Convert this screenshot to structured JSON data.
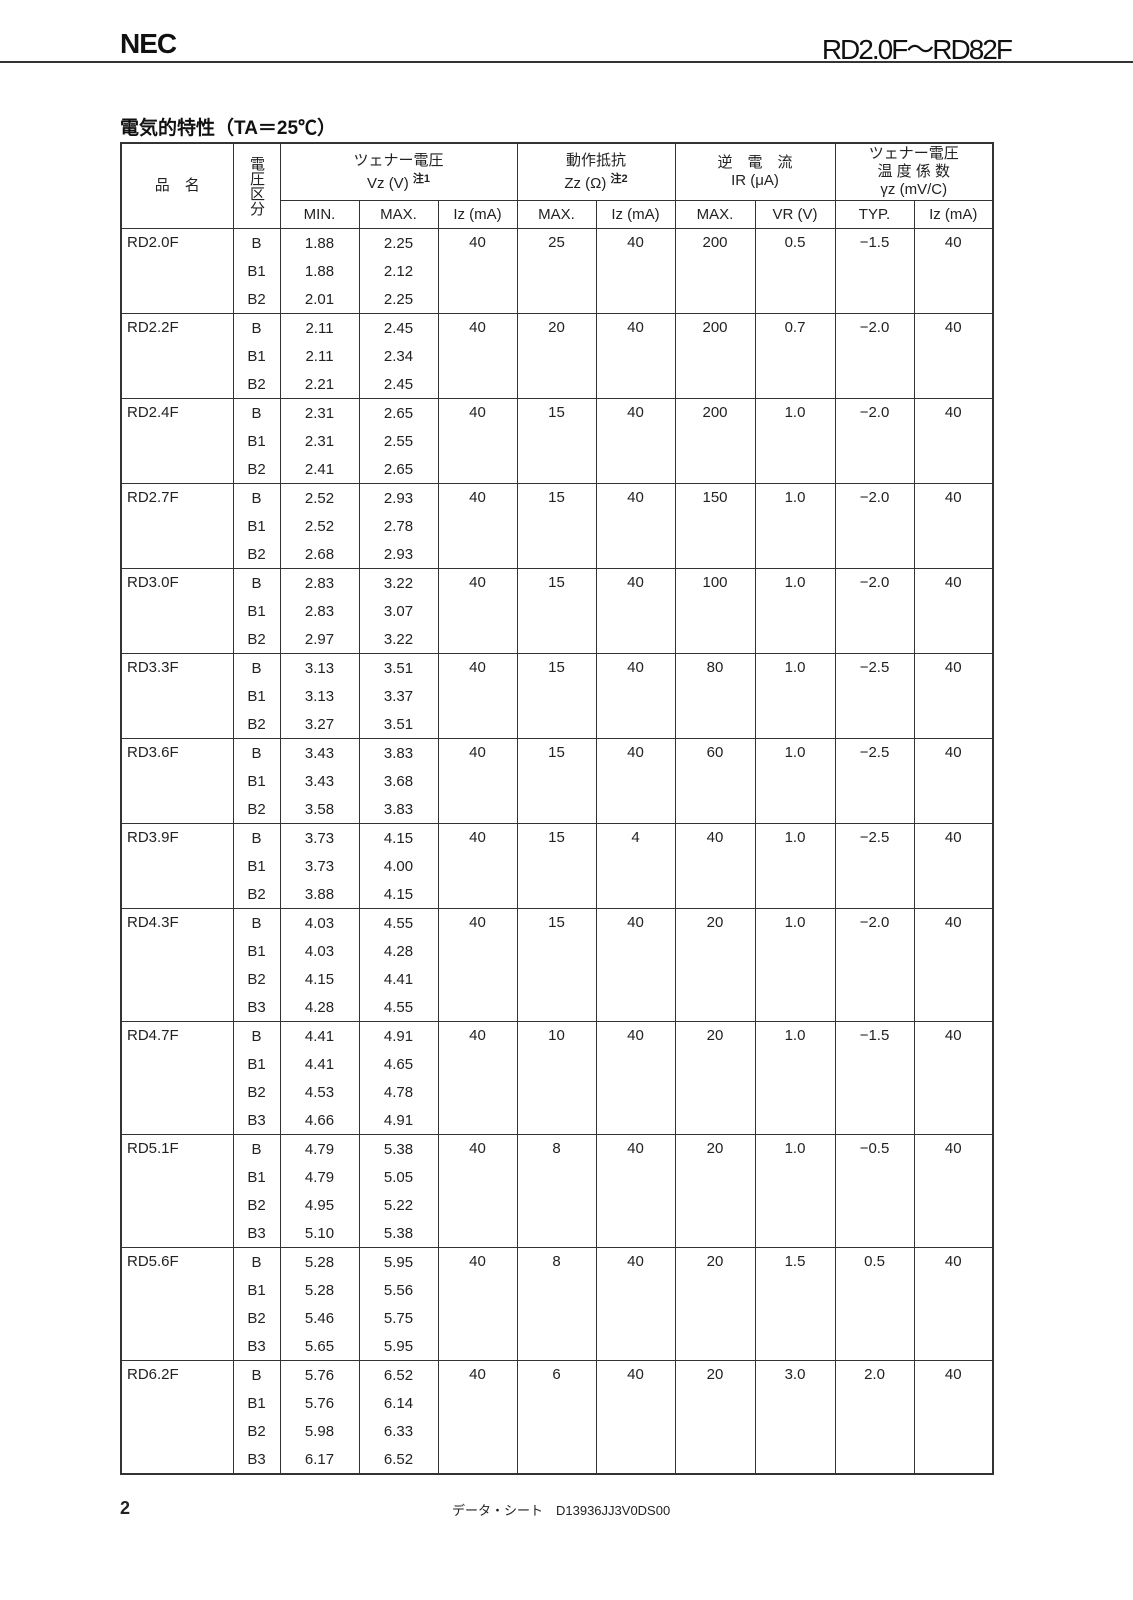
{
  "header": {
    "logo": "NEC",
    "title": "RD2.0F～RD82F"
  },
  "section_title": "電気的特性（TA＝25℃）",
  "table": {
    "headers": {
      "name": "品　名",
      "rank": "電圧区分",
      "vz_title": "ツェナー電圧",
      "vz_unit": "Vz (V)",
      "vz_note": "注1",
      "zz_title": "動作抵抗",
      "zz_unit": "Zz (Ω)",
      "zz_note": "注2",
      "ir_title": "逆　電　流",
      "ir_unit": "IR (μA)",
      "tc_title1": "ツェナー電圧",
      "tc_title2": "温 度 係 数",
      "tc_unit": "γz (mV/C)",
      "sub": [
        "MIN.",
        "MAX.",
        "Iz (mA)",
        "MAX.",
        "Iz (mA)",
        "MAX.",
        "VR (V)",
        "TYP.",
        "Iz (mA)"
      ]
    },
    "groups": [
      {
        "name": "RD2.0F",
        "iz": "40",
        "zz_max": "25",
        "zz_iz": "40",
        "ir_max": "200",
        "vr": "0.5",
        "tc_typ": "−1.5",
        "tc_iz": "40",
        "ranks": [
          [
            "B",
            "1.88",
            "2.25"
          ],
          [
            "B1",
            "1.88",
            "2.12"
          ],
          [
            "B2",
            "2.01",
            "2.25"
          ]
        ]
      },
      {
        "name": "RD2.2F",
        "iz": "40",
        "zz_max": "20",
        "zz_iz": "40",
        "ir_max": "200",
        "vr": "0.7",
        "tc_typ": "−2.0",
        "tc_iz": "40",
        "ranks": [
          [
            "B",
            "2.11",
            "2.45"
          ],
          [
            "B1",
            "2.11",
            "2.34"
          ],
          [
            "B2",
            "2.21",
            "2.45"
          ]
        ]
      },
      {
        "name": "RD2.4F",
        "iz": "40",
        "zz_max": "15",
        "zz_iz": "40",
        "ir_max": "200",
        "vr": "1.0",
        "tc_typ": "−2.0",
        "tc_iz": "40",
        "ranks": [
          [
            "B",
            "2.31",
            "2.65"
          ],
          [
            "B1",
            "2.31",
            "2.55"
          ],
          [
            "B2",
            "2.41",
            "2.65"
          ]
        ]
      },
      {
        "name": "RD2.7F",
        "iz": "40",
        "zz_max": "15",
        "zz_iz": "40",
        "ir_max": "150",
        "vr": "1.0",
        "tc_typ": "−2.0",
        "tc_iz": "40",
        "ranks": [
          [
            "B",
            "2.52",
            "2.93"
          ],
          [
            "B1",
            "2.52",
            "2.78"
          ],
          [
            "B2",
            "2.68",
            "2.93"
          ]
        ]
      },
      {
        "name": "RD3.0F",
        "iz": "40",
        "zz_max": "15",
        "zz_iz": "40",
        "ir_max": "100",
        "vr": "1.0",
        "tc_typ": "−2.0",
        "tc_iz": "40",
        "ranks": [
          [
            "B",
            "2.83",
            "3.22"
          ],
          [
            "B1",
            "2.83",
            "3.07"
          ],
          [
            "B2",
            "2.97",
            "3.22"
          ]
        ]
      },
      {
        "name": "RD3.3F",
        "iz": "40",
        "zz_max": "15",
        "zz_iz": "40",
        "ir_max": "80",
        "vr": "1.0",
        "tc_typ": "−2.5",
        "tc_iz": "40",
        "ranks": [
          [
            "B",
            "3.13",
            "3.51"
          ],
          [
            "B1",
            "3.13",
            "3.37"
          ],
          [
            "B2",
            "3.27",
            "3.51"
          ]
        ]
      },
      {
        "name": "RD3.6F",
        "iz": "40",
        "zz_max": "15",
        "zz_iz": "40",
        "ir_max": "60",
        "vr": "1.0",
        "tc_typ": "−2.5",
        "tc_iz": "40",
        "ranks": [
          [
            "B",
            "3.43",
            "3.83"
          ],
          [
            "B1",
            "3.43",
            "3.68"
          ],
          [
            "B2",
            "3.58",
            "3.83"
          ]
        ]
      },
      {
        "name": "RD3.9F",
        "iz": "40",
        "zz_max": "15",
        "zz_iz": "4",
        "ir_max": "40",
        "vr": "1.0",
        "tc_typ": "−2.5",
        "tc_iz": "40",
        "ranks": [
          [
            "B",
            "3.73",
            "4.15"
          ],
          [
            "B1",
            "3.73",
            "4.00"
          ],
          [
            "B2",
            "3.88",
            "4.15"
          ]
        ]
      },
      {
        "name": "RD4.3F",
        "iz": "40",
        "zz_max": "15",
        "zz_iz": "40",
        "ir_max": "20",
        "vr": "1.0",
        "tc_typ": "−2.0",
        "tc_iz": "40",
        "ranks": [
          [
            "B",
            "4.03",
            "4.55"
          ],
          [
            "B1",
            "4.03",
            "4.28"
          ],
          [
            "B2",
            "4.15",
            "4.41"
          ],
          [
            "B3",
            "4.28",
            "4.55"
          ]
        ]
      },
      {
        "name": "RD4.7F",
        "iz": "40",
        "zz_max": "10",
        "zz_iz": "40",
        "ir_max": "20",
        "vr": "1.0",
        "tc_typ": "−1.5",
        "tc_iz": "40",
        "ranks": [
          [
            "B",
            "4.41",
            "4.91"
          ],
          [
            "B1",
            "4.41",
            "4.65"
          ],
          [
            "B2",
            "4.53",
            "4.78"
          ],
          [
            "B3",
            "4.66",
            "4.91"
          ]
        ]
      },
      {
        "name": "RD5.1F",
        "iz": "40",
        "zz_max": "8",
        "zz_iz": "40",
        "ir_max": "20",
        "vr": "1.0",
        "tc_typ": "−0.5",
        "tc_iz": "40",
        "ranks": [
          [
            "B",
            "4.79",
            "5.38"
          ],
          [
            "B1",
            "4.79",
            "5.05"
          ],
          [
            "B2",
            "4.95",
            "5.22"
          ],
          [
            "B3",
            "5.10",
            "5.38"
          ]
        ]
      },
      {
        "name": "RD5.6F",
        "iz": "40",
        "zz_max": "8",
        "zz_iz": "40",
        "ir_max": "20",
        "vr": "1.5",
        "tc_typ": "0.5",
        "tc_iz": "40",
        "ranks": [
          [
            "B",
            "5.28",
            "5.95"
          ],
          [
            "B1",
            "5.28",
            "5.56"
          ],
          [
            "B2",
            "5.46",
            "5.75"
          ],
          [
            "B3",
            "5.65",
            "5.95"
          ]
        ]
      },
      {
        "name": "RD6.2F",
        "iz": "40",
        "zz_max": "6",
        "zz_iz": "40",
        "ir_max": "20",
        "vr": "3.0",
        "tc_typ": "2.0",
        "tc_iz": "40",
        "ranks": [
          [
            "B",
            "5.76",
            "6.52"
          ],
          [
            "B1",
            "5.76",
            "6.14"
          ],
          [
            "B2",
            "5.98",
            "6.33"
          ],
          [
            "B3",
            "6.17",
            "6.52"
          ]
        ]
      }
    ]
  },
  "footer": {
    "page": "2",
    "doc_id": "データ・シート　D13936JJ3V0DS00"
  }
}
